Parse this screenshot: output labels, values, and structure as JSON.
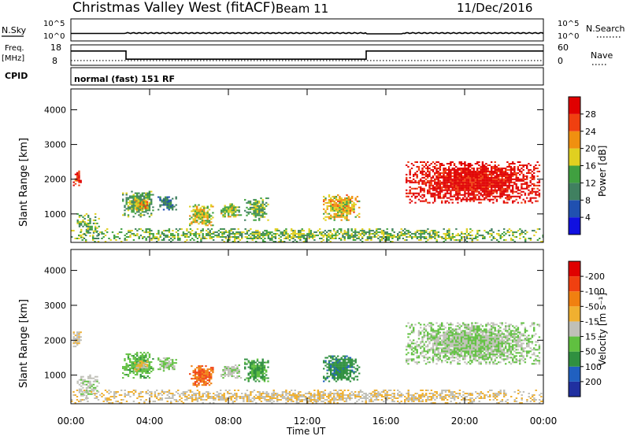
{
  "header": {
    "radar": "Christmas Valley West (fitACF)",
    "beam": "Beam 11",
    "date": "11/Dec/2016"
  },
  "top_panels": {
    "sky_label": "N.Sky",
    "sky_ticks": [
      "10^5",
      "10^0"
    ],
    "search_label": "N.Search",
    "search_ticks": [
      "10^5",
      "10^0"
    ],
    "freq_label_1": "Freq.",
    "freq_label_2": "[MHz]",
    "freq_ticks": [
      "18",
      "8"
    ],
    "nave_label": "Nave",
    "nave_ticks": [
      "60",
      "0"
    ],
    "cpid_label": "CPID",
    "cpid_text": "normal (fast) 151 RF"
  },
  "axes": {
    "x_ticks": [
      "00:00",
      "04:00",
      "08:00",
      "12:00",
      "16:00",
      "20:00",
      "00:00"
    ],
    "x_label": "Time UT",
    "y_ticks": [
      "1000",
      "2000",
      "3000",
      "4000"
    ],
    "y_label": "Slant Range [km]"
  },
  "colorbars": {
    "power_label": "Power [dB]",
    "power_ticks": [
      "4",
      "8",
      "12",
      "16",
      "20",
      "24",
      "28"
    ],
    "power_colors": [
      "#1010e0",
      "#2050b0",
      "#408060",
      "#40a040",
      "#e0d020",
      "#f09010",
      "#f04010",
      "#e00000"
    ],
    "velocity_label": "Velocity [m s⁻¹]",
    "velocity_ticks": [
      "200",
      "100",
      "50",
      "15",
      "-15",
      "-50",
      "-100",
      "-200"
    ],
    "velocity_colors": [
      "#2030a0",
      "#2060c0",
      "#309040",
      "#60c040",
      "#c0c0b8",
      "#f0b030",
      "#f08010",
      "#f04010",
      "#e00000"
    ]
  },
  "chart_data": {
    "type": "heatmap",
    "x_unit": "hours UT",
    "x_range": [
      0,
      24
    ],
    "y_unit": "km",
    "y_range": [
      180,
      4600
    ],
    "power_range_db": [
      0,
      31
    ],
    "velocity_range": [
      -250,
      250
    ],
    "frequency_mhz": {
      "steps": [
        {
          "from": 0,
          "to": 2.8,
          "value": 15
        },
        {
          "from": 2.8,
          "to": 15.0,
          "value": 11
        },
        {
          "from": 15.0,
          "to": 24,
          "value": 15
        }
      ],
      "nave": 14
    },
    "echo_regions": [
      {
        "t0": 0.1,
        "t1": 0.5,
        "r0": 1800,
        "r1": 2250,
        "power": 27,
        "velocity": -20
      },
      {
        "t0": 0.3,
        "t1": 1.4,
        "r0": 300,
        "r1": 1000,
        "power": 14,
        "velocity": -10
      },
      {
        "t0": 2.6,
        "t1": 4.2,
        "r0": 900,
        "r1": 1650,
        "power": 13,
        "velocity": 20
      },
      {
        "t0": 3.2,
        "t1": 3.9,
        "r0": 1100,
        "r1": 1400,
        "power": 20,
        "velocity": -40
      },
      {
        "t0": 4.4,
        "t1": 5.3,
        "r0": 1100,
        "r1": 1500,
        "power": 9,
        "velocity": 10
      },
      {
        "t0": 6.0,
        "t1": 7.2,
        "r0": 650,
        "r1": 1250,
        "power": 17,
        "velocity": -150
      },
      {
        "t0": 7.6,
        "t1": 8.6,
        "r0": 900,
        "r1": 1300,
        "power": 16,
        "velocity": -10
      },
      {
        "t0": 8.8,
        "t1": 10.0,
        "r0": 800,
        "r1": 1450,
        "power": 13,
        "velocity": 40
      },
      {
        "t0": 12.8,
        "t1": 14.6,
        "r0": 800,
        "r1": 1550,
        "power": 19,
        "velocity": 60
      },
      {
        "t0": 17.0,
        "t1": 23.8,
        "r0": 1300,
        "r1": 2500,
        "power": 30,
        "velocity": 0
      },
      {
        "t0": 0,
        "t1": 24,
        "r0": 180,
        "r1": 550,
        "power": 14,
        "velocity": -30
      }
    ],
    "ground_scatter_band_km": [
      180,
      550
    ]
  }
}
